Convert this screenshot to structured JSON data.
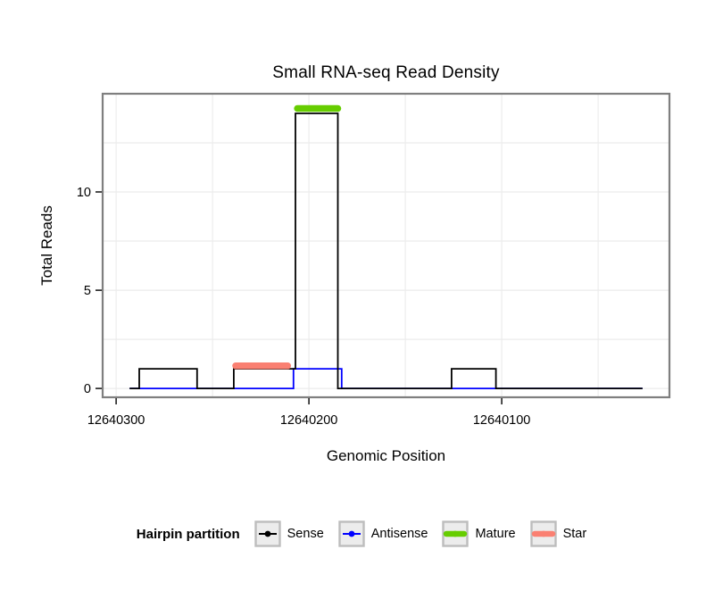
{
  "colors": {
    "background": "#ffffff",
    "gridline": "#ececec",
    "panel_border": "#7f7f7f",
    "axis_text": "#000000",
    "legend_key_fill": "#ececec",
    "legend_key_border": "#bdbdbd"
  },
  "chart_data": {
    "type": "line",
    "title": "Small RNA-seq Read Density",
    "xlabel": "Genomic Position",
    "ylabel": "Total Reads",
    "x_axis": {
      "reversed": true,
      "domain": [
        12640307,
        12640013
      ],
      "ticks": [
        12640300,
        12640200,
        12640100
      ],
      "tick_labels": [
        "12640300",
        "12640200",
        "12640100"
      ],
      "gridlines": [
        12640300,
        12640250,
        12640200,
        12640150,
        12640100,
        12640050
      ]
    },
    "y_axis": {
      "domain": [
        -0.45,
        15
      ],
      "ticks": [
        0,
        5,
        10
      ],
      "tick_labels": [
        "0",
        "5",
        "10"
      ],
      "gridlines": [
        0,
        2.5,
        5,
        7.5,
        10,
        12.5
      ]
    },
    "series": [
      {
        "name": "Antisense",
        "color": "#0000FF",
        "step_points": [
          [
            12640293,
            0
          ],
          [
            12640208,
            0
          ],
          [
            12640208,
            1
          ],
          [
            12640183,
            1
          ],
          [
            12640183,
            0
          ],
          [
            12640027,
            0
          ]
        ]
      },
      {
        "name": "Sense",
        "color": "#000000",
        "step_points": [
          [
            12640293,
            0
          ],
          [
            12640288,
            0
          ],
          [
            12640288,
            1
          ],
          [
            12640258,
            1
          ],
          [
            12640258,
            0
          ],
          [
            12640239,
            0
          ],
          [
            12640239,
            1
          ],
          [
            12640207,
            1
          ],
          [
            12640207,
            14
          ],
          [
            12640185,
            14
          ],
          [
            12640185,
            0
          ],
          [
            12640126,
            0
          ],
          [
            12640126,
            1
          ],
          [
            12640103,
            1
          ],
          [
            12640103,
            0
          ],
          [
            12640027,
            0
          ]
        ]
      }
    ],
    "annotations": [
      {
        "name": "Star",
        "color": "#FA8072",
        "y": 1.15,
        "x_start": 12640238,
        "x_end": 12640211
      },
      {
        "name": "Mature",
        "color": "#66CD00",
        "y": 14.25,
        "x_start": 12640206,
        "x_end": 12640185
      }
    ],
    "legend": {
      "title": "Hairpin partition",
      "items": [
        {
          "label": "Sense",
          "color": "#000000",
          "thick": false
        },
        {
          "label": "Antisense",
          "color": "#0000FF",
          "thick": false
        },
        {
          "label": "Mature",
          "color": "#66CD00",
          "thick": true
        },
        {
          "label": "Star",
          "color": "#FA8072",
          "thick": true
        }
      ]
    }
  }
}
